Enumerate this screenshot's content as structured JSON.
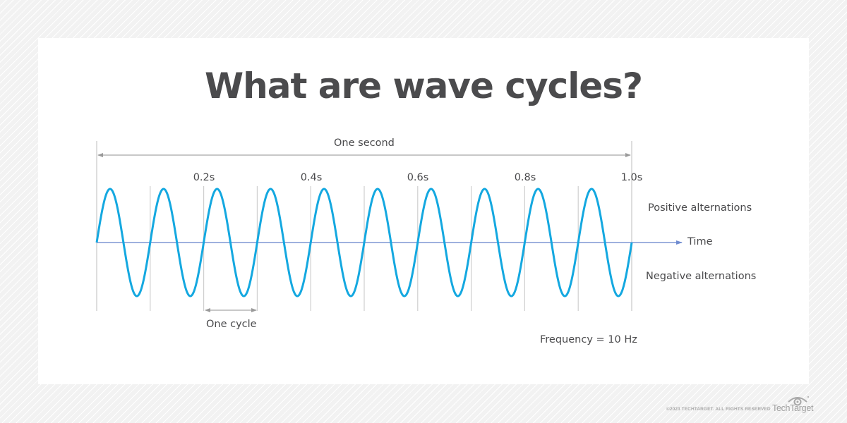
{
  "title": "What are wave cycles?",
  "labels": {
    "span": "One second",
    "positive": "Positive alternations",
    "axis": "Time",
    "negative": "Negative alternations",
    "cycle": "One cycle",
    "frequency": "Frequency = 10 Hz"
  },
  "ticks": [
    "0.2s",
    "0.4s",
    "0.6s",
    "0.8s",
    "1.0s"
  ],
  "colors": {
    "wave": "#14a8e0",
    "axis": "#7f97d4",
    "guide": "#c8c8c8",
    "text": "#4a4a4c"
  },
  "footer": {
    "copyright": "©2023 TECHTARGET. ALL RIGHTS RESERVED",
    "brand": "TechTarget"
  },
  "chart_data": {
    "type": "line",
    "title": "What are wave cycles?",
    "xlabel": "Time",
    "ylabel": "",
    "x_ticks": [
      "0.2s",
      "0.4s",
      "0.6s",
      "0.8s",
      "1.0s"
    ],
    "xlim": [
      0,
      1.0
    ],
    "ylim": [
      -1,
      1
    ],
    "series": [
      {
        "name": "sine wave",
        "function": "sin(2*pi*10*t)",
        "frequency_hz": 10,
        "cycles": 10,
        "amplitude": 1
      }
    ],
    "annotations": [
      "One second",
      "One cycle",
      "Positive alternations",
      "Negative alternations",
      "Frequency = 10 Hz"
    ]
  }
}
